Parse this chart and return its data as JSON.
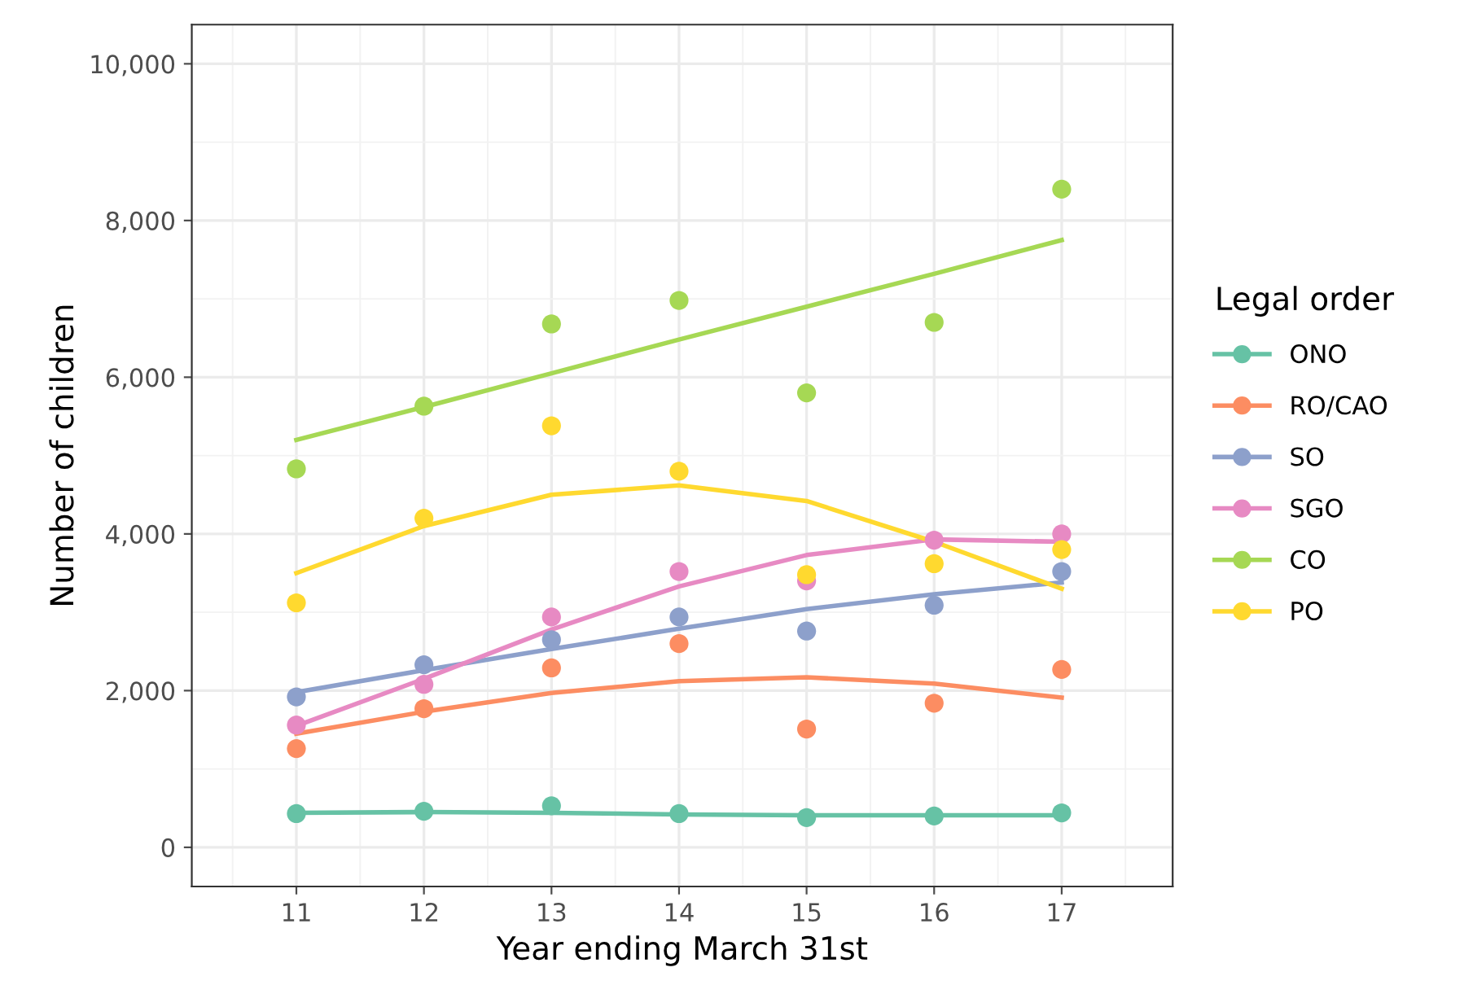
{
  "chart_data": {
    "type": "scatter",
    "xlabel": "Year ending March 31st",
    "ylabel": "Number of children",
    "legend_title": "Legal order",
    "x": [
      11,
      12,
      13,
      14,
      15,
      16,
      17
    ],
    "xlim": [
      10.18,
      17.87
    ],
    "xticks": [
      11,
      12,
      13,
      14,
      15,
      16,
      17
    ],
    "ylim": [
      -500,
      10500
    ],
    "yticks": [
      {
        "value": 0,
        "label": "0"
      },
      {
        "value": 2000,
        "label": "2,000"
      },
      {
        "value": 4000,
        "label": "4,000"
      },
      {
        "value": 6000,
        "label": "6,000"
      },
      {
        "value": 8000,
        "label": "8,000"
      },
      {
        "value": 10000,
        "label": "10,000"
      }
    ],
    "grid": true,
    "legend": "right",
    "series": [
      {
        "name": "ONO",
        "marker": "circle",
        "color": "#66c2a5",
        "values": [
          430,
          460,
          530,
          430,
          380,
          400,
          440
        ]
      },
      {
        "name": "RO/CAO",
        "marker": "circle",
        "color": "#fc8d62",
        "values": [
          1260,
          1770,
          2290,
          2600,
          1510,
          1840,
          2270
        ]
      },
      {
        "name": "SO",
        "marker": "circle",
        "color": "#8da0cb",
        "values": [
          1920,
          2330,
          2650,
          2940,
          2760,
          3090,
          3520
        ]
      },
      {
        "name": "SGO",
        "marker": "circle",
        "color": "#e78ac3",
        "values": [
          1560,
          2080,
          2940,
          3520,
          3400,
          3920,
          4000
        ]
      },
      {
        "name": "CO",
        "marker": "circle",
        "color": "#a6d854",
        "values": [
          4830,
          5630,
          6680,
          6980,
          5800,
          6700,
          8400
        ]
      },
      {
        "name": "PO",
        "marker": "circle",
        "color": "#ffd92f",
        "values": [
          3120,
          4200,
          5380,
          4800,
          3480,
          3620,
          3800
        ]
      },
      {
        "type": "line",
        "marker": "none",
        "color": "#66c2a5",
        "values": [
          440,
          450,
          440,
          420,
          410,
          410,
          410
        ]
      },
      {
        "type": "line",
        "marker": "none",
        "color": "#fc8d62",
        "values": [
          1450,
          1730,
          1970,
          2120,
          2170,
          2090,
          1910
        ]
      },
      {
        "type": "line",
        "marker": "none",
        "color": "#8da0cb",
        "values": [
          1980,
          2260,
          2530,
          2790,
          3040,
          3230,
          3380
        ]
      },
      {
        "type": "line",
        "marker": "none",
        "color": "#e78ac3",
        "values": [
          1550,
          2150,
          2780,
          3330,
          3730,
          3930,
          3900
        ]
      },
      {
        "type": "line",
        "marker": "none",
        "color": "#a6d854",
        "values": [
          5200,
          5620,
          6050,
          6480,
          6900,
          7320,
          7750
        ]
      },
      {
        "type": "line",
        "marker": "none",
        "color": "#ffd92f",
        "values": [
          3500,
          4100,
          4500,
          4620,
          4420,
          3900,
          3300
        ]
      }
    ]
  }
}
